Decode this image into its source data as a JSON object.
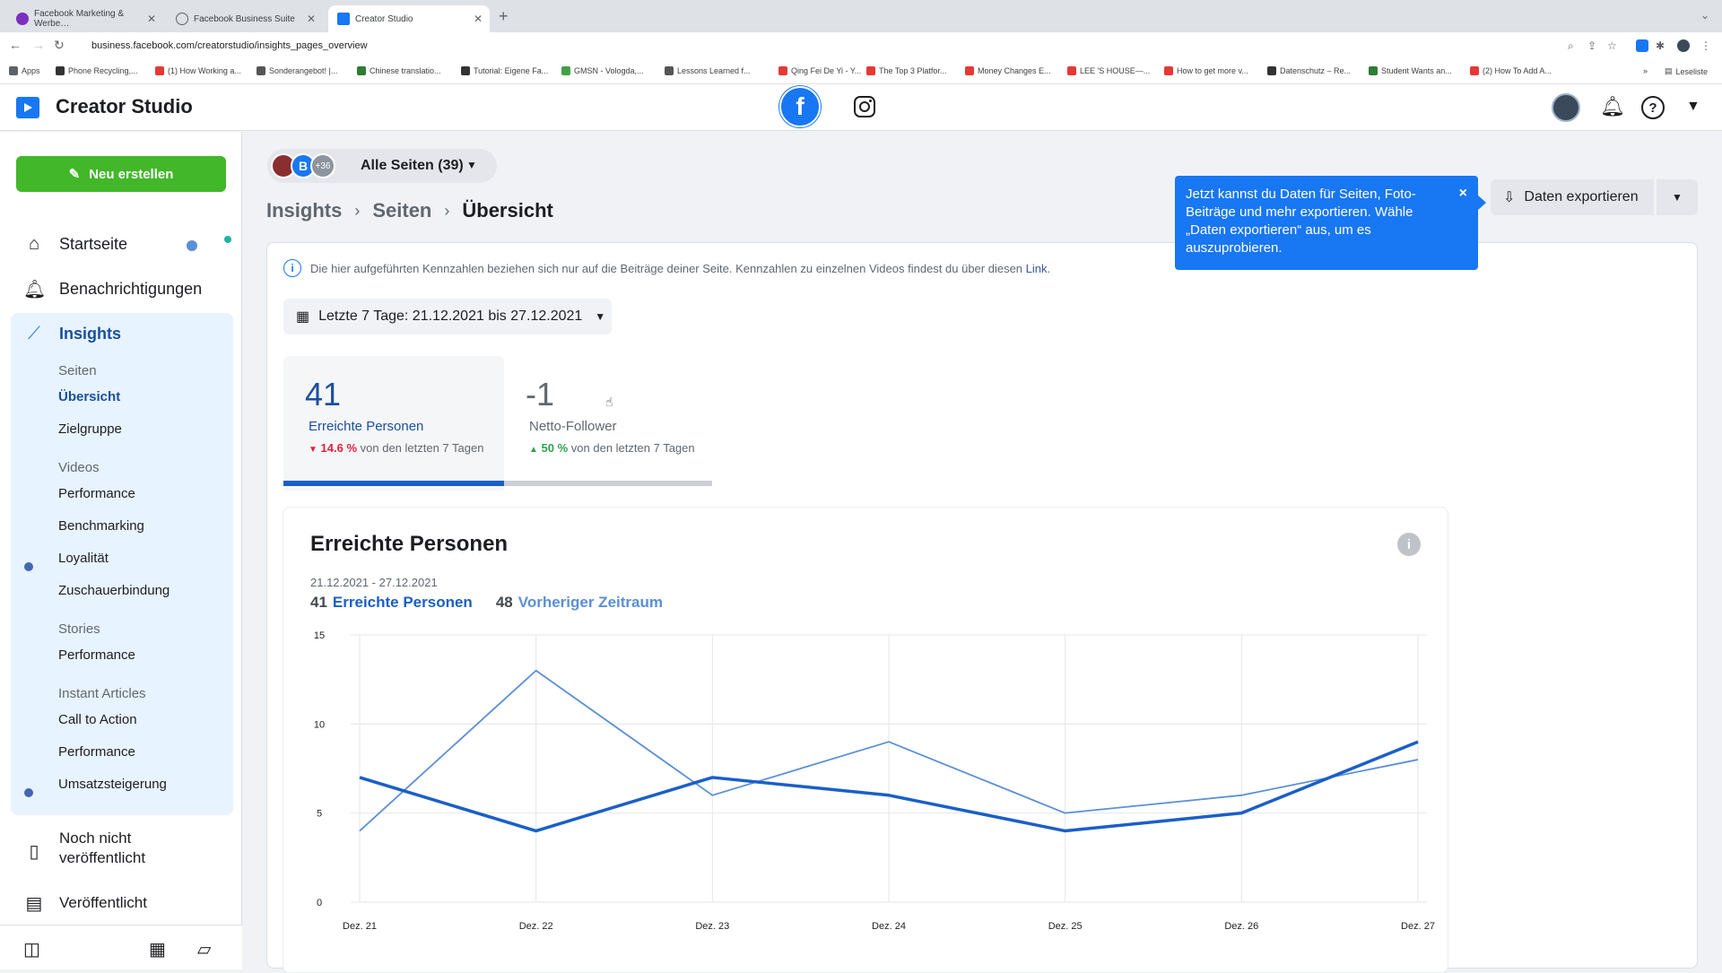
{
  "browser": {
    "tabs": [
      {
        "title": "Facebook Marketing & Werbe…",
        "icon_color": "#7b2fbf"
      },
      {
        "title": "Facebook Business Suite",
        "icon_color": "#5f6368"
      },
      {
        "title": "Creator Studio",
        "icon_color": "#1877f2"
      }
    ],
    "url": "business.facebook.com/creatorstudio/insights_pages_overview",
    "bookmarks": [
      {
        "label": "Apps",
        "color": "#5f6368"
      },
      {
        "label": "Phone Recycling,...",
        "color": "#333333"
      },
      {
        "label": "(1) How Working a...",
        "color": "#e53935"
      },
      {
        "label": "Sonderangebot! |...",
        "color": "#555555"
      },
      {
        "label": "Chinese translatio...",
        "color": "#2e7d32"
      },
      {
        "label": "Tutorial: Eigene Fa...",
        "color": "#333333"
      },
      {
        "label": "GMSN - Vologda,...",
        "color": "#43a047"
      },
      {
        "label": "Lessons Learned f...",
        "color": "#555555"
      },
      {
        "label": "Qing Fei De Yi - Y...",
        "color": "#e53935"
      },
      {
        "label": "The Top 3 Platfor...",
        "color": "#e53935"
      },
      {
        "label": "Money Changes E...",
        "color": "#e53935"
      },
      {
        "label": "LEE 'S HOUSE—...",
        "color": "#e53935"
      },
      {
        "label": "How to get more v...",
        "color": "#e53935"
      },
      {
        "label": "Datenschutz – Re...",
        "color": "#333333"
      },
      {
        "label": "Student Wants an...",
        "color": "#2e7d32"
      },
      {
        "label": "(2) How To Add A...",
        "color": "#e53935"
      }
    ],
    "reading_list": "Leseliste"
  },
  "header": {
    "title": "Creator Studio",
    "fb_letter": "f"
  },
  "sidebar": {
    "create_label": "Neu erstellen",
    "home": "Startseite",
    "notifications": "Benachrichtigungen",
    "insights": "Insights",
    "sections": {
      "pages_head": "Seiten",
      "overview": "Übersicht",
      "audience": "Zielgruppe",
      "videos_head": "Videos",
      "videos_performance": "Performance",
      "benchmarking": "Benchmarking",
      "loyalty": "Loyalität",
      "retention": "Zuschauerbindung",
      "stories_head": "Stories",
      "stories_performance": "Performance",
      "ia_head": "Instant Articles",
      "cta": "Call to Action",
      "ia_performance": "Performance",
      "revenue": "Umsatzsteigerung"
    },
    "unpublished_1": "Noch nicht",
    "unpublished_2": "veröffentlicht",
    "published": "Veröffentlicht"
  },
  "main": {
    "page_selector": {
      "badge": "B",
      "more": "+36",
      "label": "Alle Seiten (39)"
    },
    "breadcrumbs": [
      "Insights",
      "Seiten",
      "Übersicht"
    ],
    "tooltip": "Jetzt kannst du Daten für Seiten, Foto-Beiträge und mehr exportieren. Wähle „Daten exportieren“ aus, um es auszuprobieren.",
    "tooltip_close": "×",
    "export_label": "Daten exportieren",
    "info_note": "Die hier aufgeführten Kennzahlen beziehen sich nur auf die Beiträge deiner Seite. Kennzahlen zu einzelnen Videos findest du über diesen",
    "info_link": "Link",
    "date_range": "Letzte 7 Tage: 21.12.2021 bis 27.12.2021",
    "metrics": [
      {
        "value": "41",
        "label": "Erreichte Personen",
        "change": "14.6 %",
        "change_text": "von den letzten 7 Tagen",
        "direction": "down",
        "change_color": "#e41e3f"
      },
      {
        "value": "-1",
        "label": "Netto-Follower",
        "change": "50 %",
        "change_text": "von den letzten 7 Tagen",
        "direction": "up",
        "change_color": "#31a24c"
      }
    ],
    "chart_section": {
      "title": "Erreichte Personen",
      "info_glyph": "i",
      "range": "21.12.2021 - 27.12.2021",
      "current_total": "41",
      "current_label": "Erreichte Personen",
      "previous_total": "48",
      "previous_label": "Vorheriger Zeitraum"
    }
  },
  "chart_data": {
    "type": "line",
    "categories": [
      "Dez. 21",
      "Dez. 22",
      "Dez. 23",
      "Dez. 24",
      "Dez. 25",
      "Dez. 26",
      "Dez. 27"
    ],
    "series": [
      {
        "name": "Erreichte Personen",
        "values": [
          7,
          4,
          7,
          6,
          4,
          5,
          9
        ],
        "color": "#1a5fc8"
      },
      {
        "name": "Vorheriger Zeitraum",
        "values": [
          4,
          13,
          6,
          9,
          5,
          6,
          8
        ],
        "color": "#5b8fd6"
      }
    ],
    "yticks": [
      0,
      5,
      10,
      15
    ],
    "ylim": [
      0,
      15
    ],
    "grid": true
  }
}
